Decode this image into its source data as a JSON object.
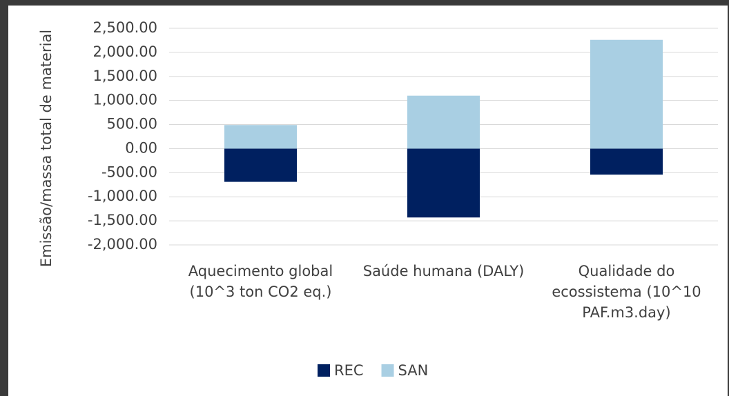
{
  "chart_data": {
    "type": "bar",
    "stacked": true,
    "y_label": "Emissão/massa total de material",
    "categories": [
      "Aquecimento global (10^3 ton CO2 eq.)",
      "Saúde humana (DALY)",
      "Qualidade do ecossistema (10^10 PAF.m3.day)"
    ],
    "series": [
      {
        "name": "REC",
        "color": "#002060",
        "values": [
          -690,
          -1430,
          -540
        ]
      },
      {
        "name": "SAN",
        "color": "#a9cfe3",
        "values": [
          490,
          1100,
          2260
        ]
      }
    ],
    "ylim": [
      -2000,
      2500
    ],
    "yticks": [
      {
        "value": -2000,
        "label": "-2,000.00"
      },
      {
        "value": -1500,
        "label": "-1,500.00"
      },
      {
        "value": -1000,
        "label": "-1,000.00"
      },
      {
        "value": -500,
        "label": "-500.00"
      },
      {
        "value": 0,
        "label": "0.00"
      },
      {
        "value": 500,
        "label": "500.00"
      },
      {
        "value": 1000,
        "label": "1,000.00"
      },
      {
        "value": 1500,
        "label": "1,500.00"
      },
      {
        "value": 2000,
        "label": "2,000.00"
      },
      {
        "value": 2500,
        "label": "2,500.00"
      }
    ],
    "grid": true,
    "legend": "bottom"
  }
}
